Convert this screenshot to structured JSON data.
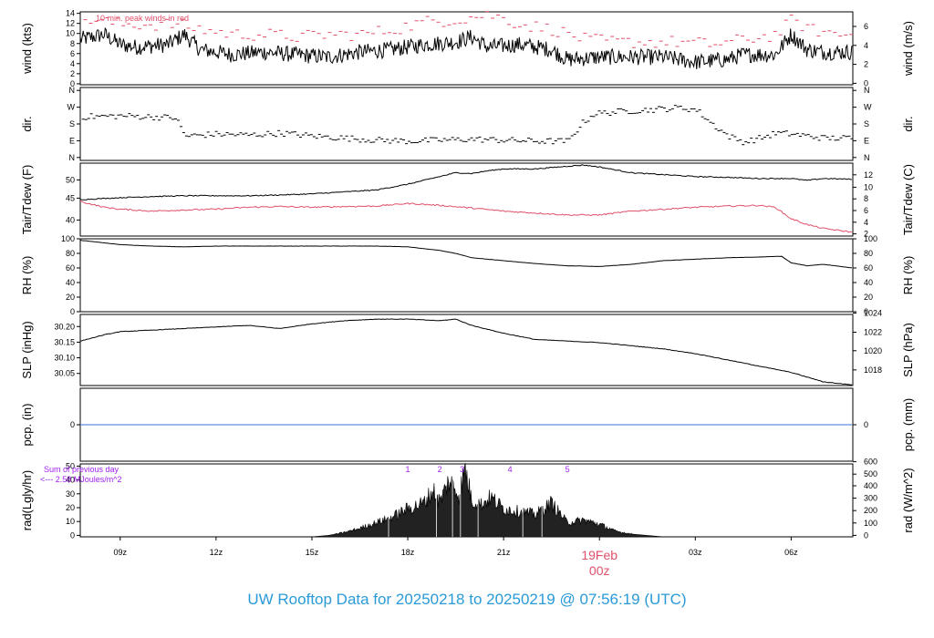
{
  "footer_title": "UW Rooftop Data for 20250218  to  20250219 @ 07:56:19  (UTC)",
  "colors": {
    "axis": "#000000",
    "data": "#000000",
    "red": "#e0506a",
    "purple": "#a020f0",
    "blue": "#3a6fd8",
    "title": "#2a9ad8"
  },
  "x_axis": {
    "start_hour": 7.75,
    "end_hour": 31.93,
    "ticks": [
      {
        "hour": 9,
        "label": "09z"
      },
      {
        "hour": 12,
        "label": "12z"
      },
      {
        "hour": 15,
        "label": "15z"
      },
      {
        "hour": 18,
        "label": "18z"
      },
      {
        "hour": 21,
        "label": "21z"
      },
      {
        "hour": 24,
        "label": "00z"
      },
      {
        "hour": 27,
        "label": "03z"
      },
      {
        "hour": 30,
        "label": "06z"
      }
    ],
    "day_label": "19Feb",
    "day_label_hour": 24
  },
  "chart_data": [
    {
      "type": "line",
      "panel": "wind",
      "ylabel_left": "wind (kts)",
      "ylabel_right": "wind (m/s)",
      "ylim": [
        0,
        14.5
      ],
      "yticks_left": [
        "0",
        "2",
        "4",
        "6",
        "8",
        "10",
        "12",
        "14"
      ],
      "yticks_right": [
        "0",
        "2",
        "4",
        "6"
      ],
      "annotation": "10 min. peak winds in red",
      "series": [
        {
          "role": "mean",
          "x": [
            7.75,
            8.5,
            9.0,
            9.5,
            10.5,
            11.0,
            11.5,
            12.5,
            13.5,
            14.5,
            15.5,
            16.5,
            17.5,
            18.5,
            19.5,
            20.0,
            20.5,
            21.5,
            22.5,
            23.0,
            24.0,
            25.0,
            26.0,
            27.0,
            28.0,
            28.5,
            29.5,
            30.0,
            30.5,
            31.0,
            31.93
          ],
          "y": [
            9,
            10,
            8,
            7.5,
            8,
            10,
            7,
            6,
            6.5,
            6,
            5.5,
            6.5,
            7,
            8,
            8.5,
            9.5,
            7.5,
            8,
            7,
            5,
            5.5,
            5.5,
            5.5,
            4.5,
            5,
            6,
            6,
            10,
            7,
            6.5,
            6.5
          ]
        },
        {
          "role": "peak",
          "x": [
            8.0,
            9.0,
            10.0,
            10.7,
            11.5,
            12.5,
            13.5,
            14.5,
            15.5,
            16.5,
            17.5,
            18.5,
            19.5,
            20.5,
            21.5,
            22.5,
            23.5,
            24.5,
            25.5,
            26.5,
            27.5,
            28.5,
            29.5,
            30.0,
            30.5,
            31.5
          ],
          "y": [
            13,
            12,
            12,
            12,
            11,
            10,
            10,
            9.5,
            10,
            10,
            11,
            12.5,
            13,
            14,
            12,
            11,
            9,
            8.5,
            8.5,
            8.5,
            8,
            9,
            10,
            13,
            11,
            10
          ]
        }
      ]
    },
    {
      "type": "scatter",
      "panel": "dir",
      "ylabel_left": "dir.",
      "ylabel_right": "dir.",
      "ylim": [
        0,
        360
      ],
      "yticks_left": [
        "N",
        "E",
        "S",
        "W",
        "N"
      ],
      "yticks_right": [
        "N",
        "E",
        "S",
        "W",
        "N"
      ],
      "series": [
        {
          "role": "direction",
          "x": [
            7.75,
            9.0,
            10.0,
            10.7,
            11.0,
            12.0,
            13.0,
            14.0,
            15.0,
            16.0,
            17.0,
            18.0,
            19.0,
            20.0,
            21.0,
            22.0,
            23.0,
            23.4,
            23.8,
            24.5,
            25.0,
            26.0,
            26.5,
            27.0,
            27.5,
            28.0,
            28.5,
            29.0,
            29.5,
            30.0,
            30.5,
            31.0,
            31.93
          ],
          "y": [
            215,
            220,
            215,
            210,
            120,
            130,
            125,
            135,
            120,
            110,
            100,
            95,
            100,
            105,
            100,
            95,
            95,
            180,
            230,
            240,
            245,
            255,
            260,
            250,
            180,
            120,
            90,
            110,
            135,
            130,
            120,
            110,
            110
          ]
        }
      ]
    },
    {
      "type": "line",
      "panel": "tair",
      "ylabel_left": "Tair/Tdew (F)",
      "ylabel_right": "Tair/Tdew (C)",
      "ylim": [
        35.5,
        54.5
      ],
      "yticks_left": [
        "40",
        "45",
        "50"
      ],
      "yticks_right": [
        "2",
        "4",
        "6",
        "8",
        "10",
        "12"
      ],
      "series": [
        {
          "role": "tair",
          "x": [
            7.75,
            9.0,
            10.0,
            11.0,
            12.0,
            13.0,
            14.0,
            15.0,
            16.0,
            17.0,
            18.0,
            19.0,
            19.5,
            20.0,
            20.5,
            21.0,
            22.0,
            23.0,
            23.5,
            24.0,
            25.0,
            26.0,
            27.0,
            28.0,
            29.0,
            30.0,
            30.5,
            31.0,
            31.93
          ],
          "y": [
            45,
            45.5,
            45.8,
            46,
            46,
            46,
            46.2,
            46.5,
            47,
            47.5,
            49,
            51,
            52,
            51.8,
            52.5,
            53,
            53,
            53.7,
            54,
            53.5,
            52,
            51.5,
            51,
            50.8,
            50.5,
            50.5,
            50,
            50.5,
            50.3
          ]
        },
        {
          "role": "tdew",
          "x": [
            7.75,
            8.5,
            9.0,
            10.0,
            11.0,
            12.0,
            13.0,
            14.0,
            15.0,
            16.0,
            17.0,
            18.0,
            19.0,
            20.0,
            21.0,
            22.0,
            23.0,
            24.0,
            25.0,
            26.0,
            27.0,
            28.0,
            29.0,
            29.5,
            30.0,
            30.5,
            31.0,
            31.93
          ],
          "y": [
            44.5,
            43,
            42.5,
            42,
            42.3,
            42.5,
            43,
            43.2,
            43,
            43.2,
            43.3,
            44,
            43.5,
            42.8,
            42,
            41.5,
            41,
            41,
            42,
            42.5,
            43,
            43.3,
            43.5,
            43,
            40,
            38.5,
            37.5,
            36.5
          ]
        }
      ]
    },
    {
      "type": "line",
      "panel": "rh",
      "ylabel_left": "RH (%)",
      "ylabel_right": "RH (%)",
      "ylim": [
        0,
        100
      ],
      "yticks_left": [
        "0",
        "20",
        "40",
        "60",
        "80",
        "100"
      ],
      "yticks_right": [
        "0",
        "20",
        "40",
        "60",
        "80",
        "100"
      ],
      "series": [
        {
          "role": "rh",
          "x": [
            7.75,
            9.0,
            10.0,
            11.0,
            12.0,
            13.0,
            14.0,
            15.0,
            16.0,
            17.0,
            18.0,
            19.0,
            19.5,
            20.0,
            21.0,
            22.0,
            23.0,
            24.0,
            25.0,
            26.0,
            27.0,
            28.0,
            29.0,
            29.7,
            30.0,
            30.5,
            31.0,
            31.93
          ],
          "y": [
            98,
            92,
            90,
            89,
            90,
            90,
            90,
            90,
            90,
            90,
            89,
            84,
            80,
            74,
            70,
            66,
            63,
            62,
            65,
            70,
            72,
            74,
            75,
            76,
            67,
            63,
            65,
            60
          ]
        }
      ]
    },
    {
      "type": "line",
      "panel": "slp",
      "ylabel_left": "SLP (inHg)",
      "ylabel_right": "SLP (hPa)",
      "ylim": [
        30.018,
        30.245
      ],
      "yticks_left": [
        "30.05",
        "30.10",
        "30.15",
        "30.20"
      ],
      "yticks_right": [
        "1018",
        "1020",
        "1022",
        "1024"
      ],
      "series": [
        {
          "role": "slp",
          "x": [
            7.75,
            8.5,
            9.0,
            10.0,
            11.0,
            12.0,
            13.0,
            14.0,
            15.0,
            16.0,
            17.0,
            18.0,
            19.0,
            19.5,
            20.0,
            21.0,
            22.0,
            23.0,
            24.0,
            25.0,
            26.0,
            27.0,
            28.0,
            29.0,
            30.0,
            30.5,
            31.0,
            31.93
          ],
          "y": [
            30.16,
            30.18,
            30.19,
            30.195,
            30.2,
            30.205,
            30.21,
            30.2,
            30.215,
            30.225,
            30.23,
            30.23,
            30.225,
            30.23,
            30.21,
            30.185,
            30.165,
            30.16,
            30.155,
            30.145,
            30.135,
            30.12,
            30.1,
            30.08,
            30.06,
            30.045,
            30.03,
            30.02
          ]
        }
      ]
    },
    {
      "type": "line",
      "panel": "pcp",
      "ylabel_left": "pcp. (in)",
      "ylabel_right": "pcp. (mm)",
      "ylim": [
        -1,
        1
      ],
      "yticks_left": [
        "0"
      ],
      "yticks_right": [
        "0"
      ],
      "series": [
        {
          "role": "pcp",
          "x": [
            7.75,
            31.93
          ],
          "y": [
            0,
            0
          ]
        }
      ]
    },
    {
      "type": "area",
      "panel": "rad",
      "ylabel_left": "rad(Lgly/hr)",
      "ylabel_right": "rad (W/m^2)",
      "ylim": [
        0,
        52
      ],
      "yticks_left": [
        "0",
        "10",
        "20",
        "30",
        "40",
        "50"
      ],
      "yticks_right": [
        "0",
        "100",
        "200",
        "300",
        "400",
        "500",
        "600"
      ],
      "annotation_line1": "Sum of previous day",
      "annotation_line2": "<--- 2.58 MJoules/m^2",
      "markers": [
        {
          "hour": 18.0,
          "label": "1"
        },
        {
          "hour": 19.0,
          "label": "2"
        },
        {
          "hour": 19.7,
          "label": "3"
        },
        {
          "hour": 21.2,
          "label": "4"
        },
        {
          "hour": 23.0,
          "label": "5"
        }
      ],
      "series": [
        {
          "role": "radiation",
          "x": [
            15.0,
            15.5,
            16.0,
            16.5,
            17.0,
            17.5,
            18.0,
            18.5,
            18.8,
            19.0,
            19.3,
            19.6,
            19.8,
            20.0,
            20.3,
            20.6,
            21.0,
            21.5,
            22.0,
            22.5,
            23.0,
            23.5,
            24.0,
            24.5,
            25.0,
            25.5,
            26.0
          ],
          "y": [
            0,
            1,
            3,
            6,
            10,
            14,
            20,
            24,
            33,
            25,
            40,
            30,
            48,
            26,
            23,
            28,
            20,
            18,
            16,
            24,
            10,
            12,
            9,
            4,
            2,
            1,
            0
          ]
        }
      ]
    }
  ]
}
